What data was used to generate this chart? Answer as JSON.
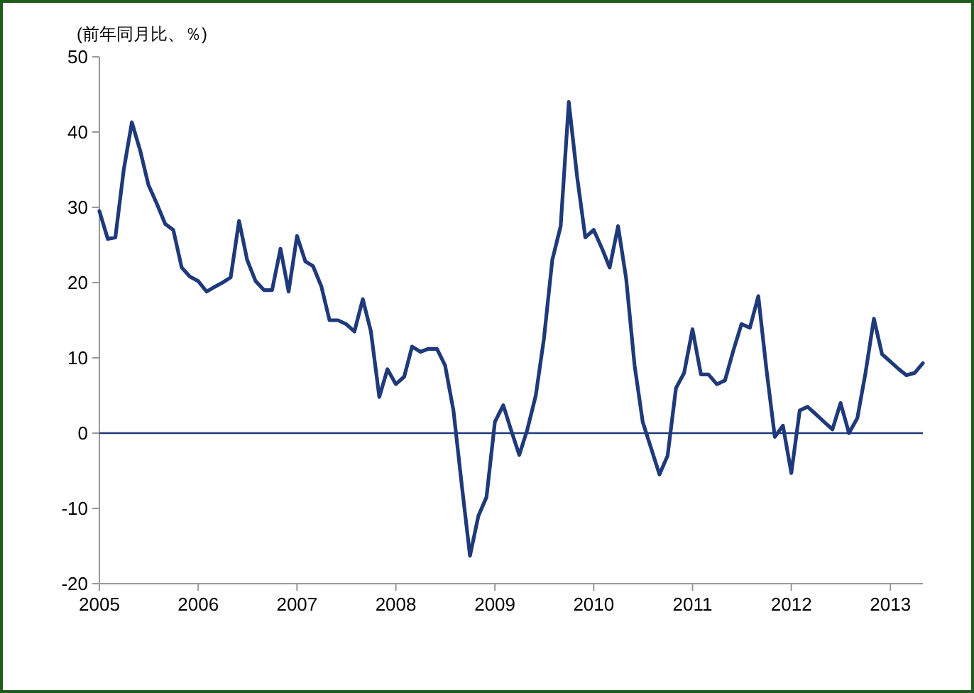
{
  "chart_data": {
    "type": "line",
    "ylabel": "(前年同月比、％)",
    "x": [
      "2005-01",
      "2005-02",
      "2005-03",
      "2005-04",
      "2005-05",
      "2005-06",
      "2005-07",
      "2005-08",
      "2005-09",
      "2005-10",
      "2005-11",
      "2005-12",
      "2006-01",
      "2006-02",
      "2006-03",
      "2006-04",
      "2006-05",
      "2006-06",
      "2006-07",
      "2006-08",
      "2006-09",
      "2006-10",
      "2006-11",
      "2006-12",
      "2007-01",
      "2007-02",
      "2007-03",
      "2007-04",
      "2007-05",
      "2007-06",
      "2007-07",
      "2007-08",
      "2007-09",
      "2007-10",
      "2007-11",
      "2007-12",
      "2008-01",
      "2008-02",
      "2008-03",
      "2008-04",
      "2008-05",
      "2008-06",
      "2008-07",
      "2008-08",
      "2008-09",
      "2008-10",
      "2008-11",
      "2008-12",
      "2009-01",
      "2009-02",
      "2009-03",
      "2009-04",
      "2009-05",
      "2009-06",
      "2009-07",
      "2009-08",
      "2009-09",
      "2009-10",
      "2009-11",
      "2009-12",
      "2010-01",
      "2010-02",
      "2010-03",
      "2010-04",
      "2010-05",
      "2010-06",
      "2010-07",
      "2010-08",
      "2010-09",
      "2010-10",
      "2010-11",
      "2010-12",
      "2011-01",
      "2011-02",
      "2011-03",
      "2011-04",
      "2011-05",
      "2011-06",
      "2011-07",
      "2011-08",
      "2011-09",
      "2011-10",
      "2011-11",
      "2011-12",
      "2012-01",
      "2012-02",
      "2012-03",
      "2012-04",
      "2012-05",
      "2012-06",
      "2012-07",
      "2012-08",
      "2012-09",
      "2012-10",
      "2012-11",
      "2012-12",
      "2013-01",
      "2013-02",
      "2013-03",
      "2013-04",
      "2013-05"
    ],
    "series": [
      {
        "color": "#1f3a7a",
        "values": [
          29.5,
          25.8,
          26,
          35,
          41.3,
          37.5,
          33,
          30.5,
          27.8,
          27,
          22,
          20.8,
          20.2,
          18.8,
          19.4,
          20,
          20.7,
          28.2,
          23,
          20.2,
          19,
          19,
          24.5,
          18.8,
          26.2,
          22.8,
          22.2,
          19.5,
          15,
          15,
          14.5,
          13.5,
          17.8,
          13.5,
          4.8,
          8.5,
          6.5,
          7.5,
          11.5,
          10.8,
          11.2,
          11.2,
          9,
          3,
          -7,
          -16.3,
          -11,
          -8.5,
          1.5,
          3.7,
          0.5,
          -2.9,
          0.5,
          5,
          12.5,
          23,
          27.5,
          44,
          34,
          26,
          27,
          24.5,
          22,
          27.5,
          20.5,
          9,
          1.5,
          -2,
          -5.5,
          -3,
          6,
          8,
          13.8,
          7.8,
          7.8,
          6.5,
          7,
          11,
          14.5,
          14,
          18.2,
          8.5,
          -0.5,
          1,
          -5.3,
          3,
          3.5,
          2.5,
          1.5,
          0.5,
          4,
          0,
          2,
          8,
          15.2,
          10.5,
          9.5,
          8.5,
          7.7,
          8,
          9.3
        ]
      }
    ],
    "xlim": [
      "2005-01",
      "2013-05"
    ],
    "xticks": [
      {
        "value": "2005-01",
        "label": "2005"
      },
      {
        "value": "2006-01",
        "label": "2006"
      },
      {
        "value": "2007-01",
        "label": "2007"
      },
      {
        "value": "2008-01",
        "label": "2008"
      },
      {
        "value": "2009-01",
        "label": "2009"
      },
      {
        "value": "2010-01",
        "label": "2010"
      },
      {
        "value": "2011-01",
        "label": "2011"
      },
      {
        "value": "2012-01",
        "label": "2012"
      },
      {
        "value": "2013-01",
        "label": "2013"
      }
    ],
    "ylim": [
      -20,
      50
    ],
    "yticks": [
      -20,
      -10,
      0,
      10,
      20,
      30,
      40,
      50
    ],
    "ref_lines": [
      {
        "axis": "y",
        "value": 0,
        "color": "#1f3a7a"
      }
    ],
    "grid": false,
    "marker": "none",
    "line_style": "solid"
  }
}
